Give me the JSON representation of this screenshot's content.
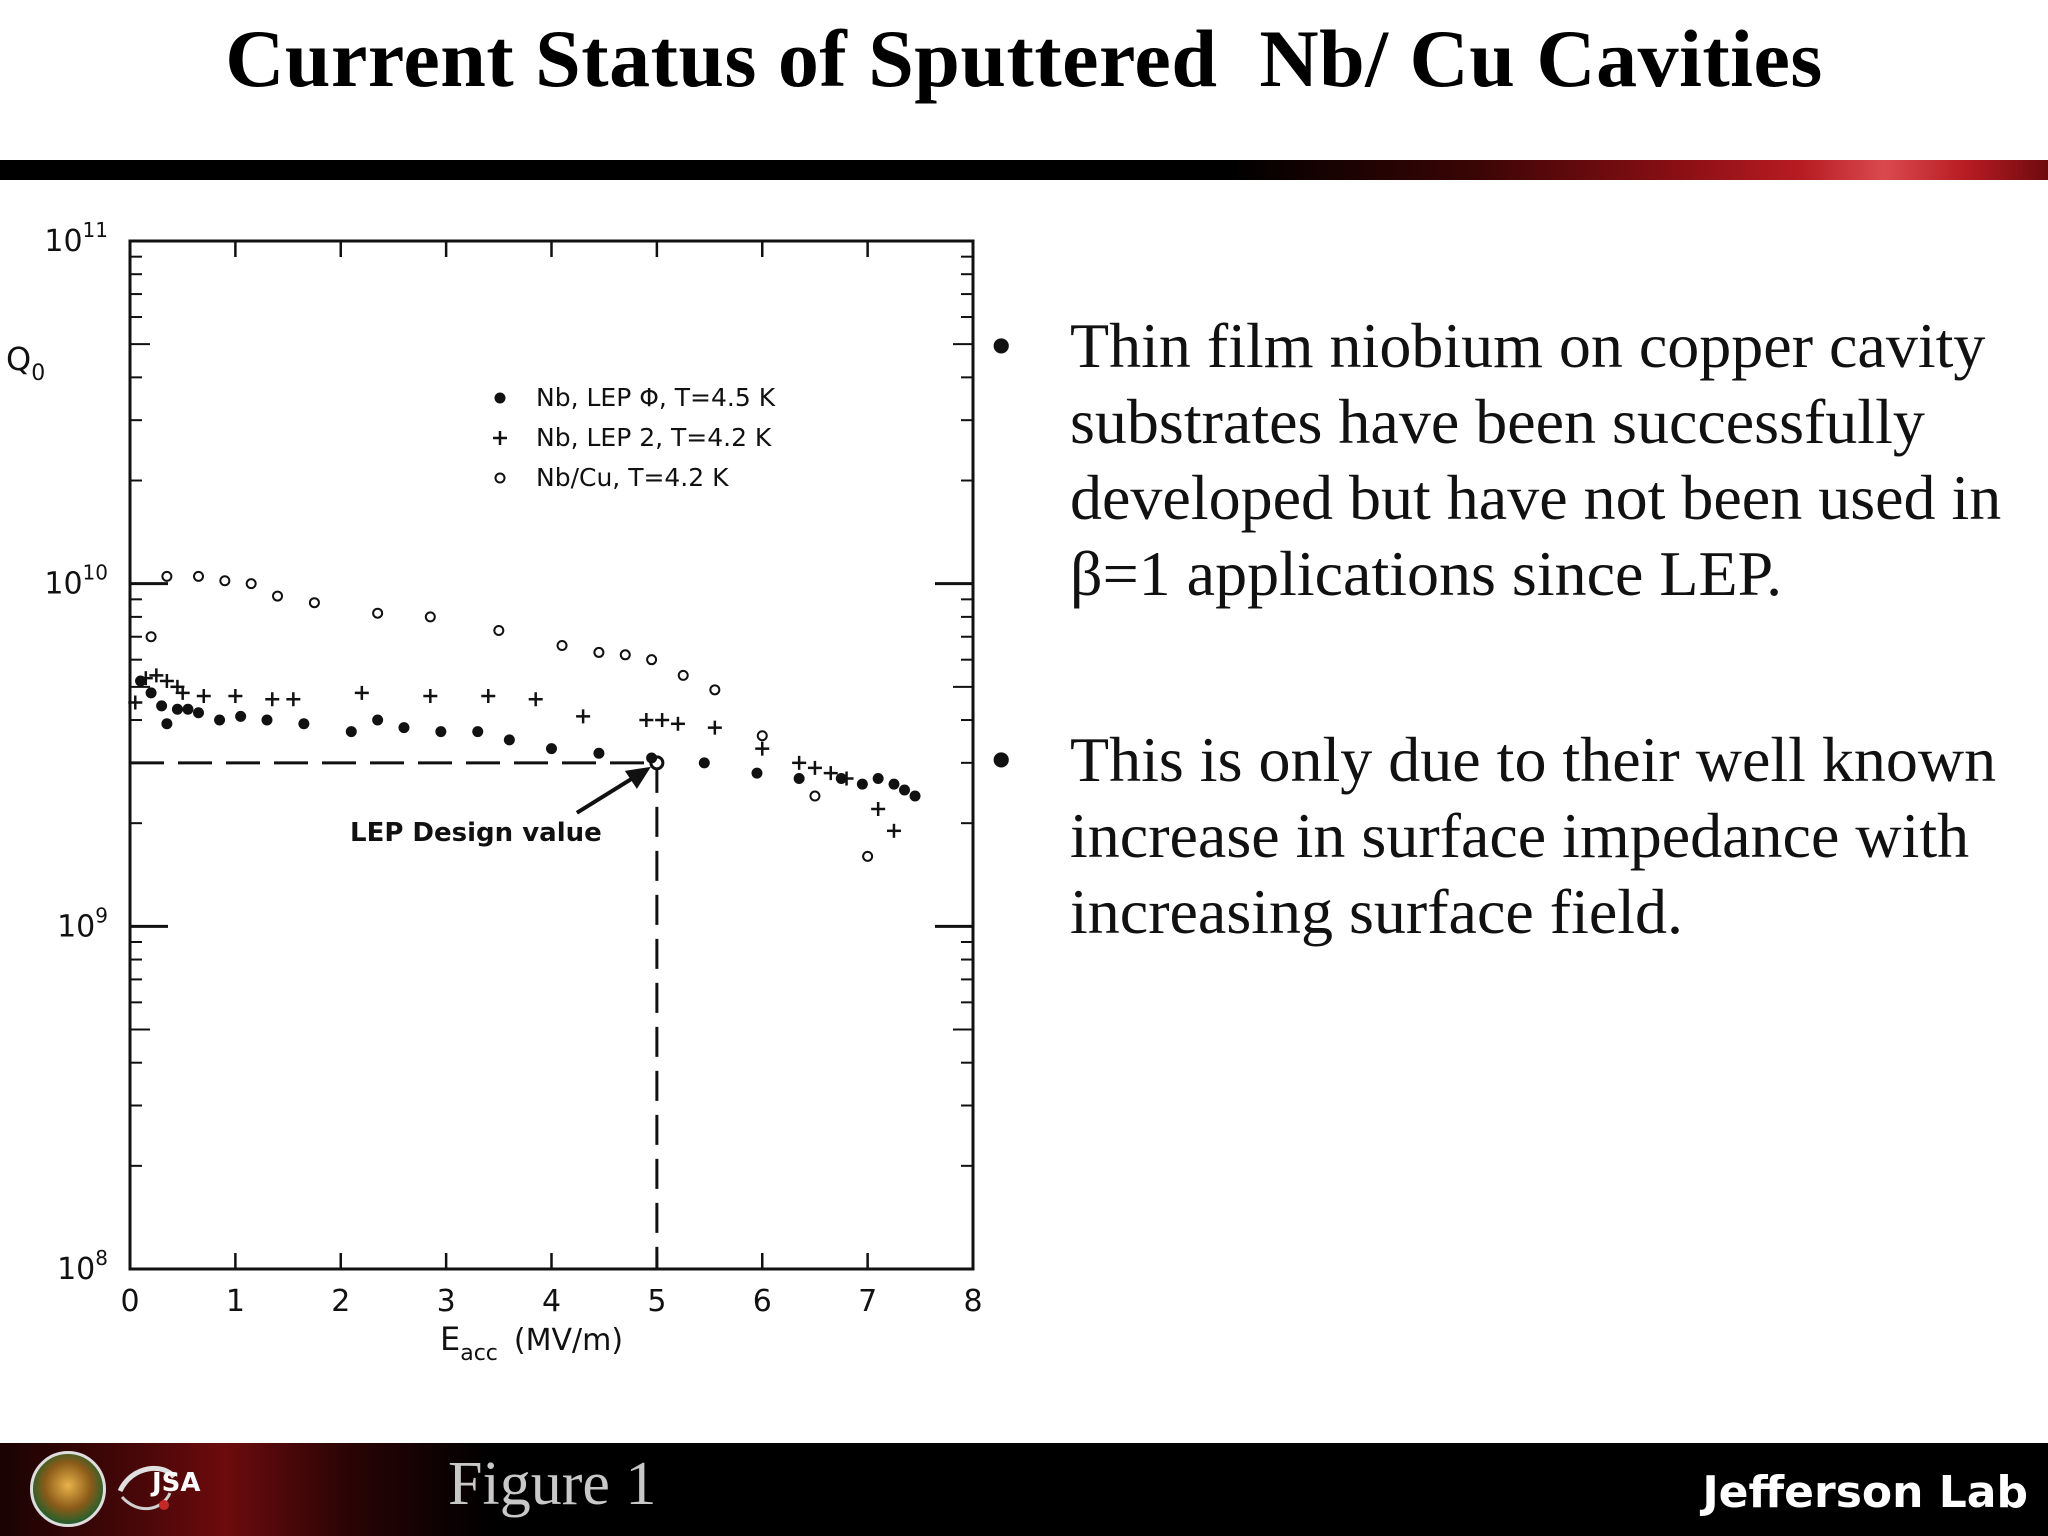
{
  "slide": {
    "title": "Current Status of Sputtered  Nb/ Cu Cavities",
    "bullets": [
      "Thin film niobium on copper cavity substrates have been successfully developed but have not been used in β=1 applications since LEP.",
      "This is only due to their well known increase in surface impedance with increasing surface field."
    ],
    "bullet_symbol": "•"
  },
  "footer": {
    "caption": "Figure 1",
    "brand": "Jefferson Lab",
    "logo_text": "JSA",
    "icons": [
      "doe-seal-icon",
      "jsa-logo-icon"
    ]
  },
  "chart_data": {
    "type": "scatter",
    "y_scale": "log",
    "xlim": [
      0,
      8
    ],
    "ylim": [
      100000000.0,
      100000000000.0
    ],
    "x_ticks": [
      "0",
      "1",
      "2",
      "3",
      "4",
      "5",
      "6",
      "7",
      "8"
    ],
    "y_ticks": [
      {
        "base": "10",
        "exp": "8"
      },
      {
        "base": "10",
        "exp": "9"
      },
      {
        "base": "10",
        "exp": "10"
      },
      {
        "base": "10",
        "exp": "11"
      }
    ],
    "ylabel": {
      "main": "Q",
      "sub": "0"
    },
    "xlabel": {
      "main": "E",
      "sub": "acc",
      "unit": "(MV/m)"
    },
    "grid": false,
    "legend_position": "top-center",
    "series": [
      {
        "name": "Nb, LEP Φ,  T=4.5 K",
        "marker": "dot",
        "x": [
          0.1,
          0.2,
          0.3,
          0.35,
          0.45,
          0.55,
          0.65,
          0.85,
          1.05,
          1.3,
          1.65,
          2.1,
          2.35,
          2.6,
          2.95,
          3.3,
          3.6,
          4.0,
          4.45,
          4.95,
          5.45,
          5.95,
          6.35,
          6.75,
          6.95,
          7.1,
          7.25,
          7.35,
          7.45
        ],
        "y": [
          5200000000.0,
          4800000000.0,
          4400000000.0,
          3900000000.0,
          4300000000.0,
          4300000000.0,
          4200000000.0,
          4000000000.0,
          4100000000.0,
          4000000000.0,
          3900000000.0,
          3700000000.0,
          4000000000.0,
          3800000000.0,
          3700000000.0,
          3700000000.0,
          3500000000.0,
          3300000000.0,
          3200000000.0,
          3100000000.0,
          3000000000.0,
          2800000000.0,
          2700000000.0,
          2700000000.0,
          2600000000.0,
          2700000000.0,
          2600000000.0,
          2500000000.0,
          2400000000.0
        ]
      },
      {
        "name": "Nb, LEP 2,  T=4.2 K",
        "marker": "plus",
        "x": [
          0.05,
          0.15,
          0.25,
          0.35,
          0.45,
          0.5,
          0.7,
          1.0,
          1.35,
          1.55,
          2.2,
          2.85,
          3.4,
          3.85,
          4.3,
          4.9,
          5.05,
          5.2,
          5.55,
          6.0,
          6.35,
          6.5,
          6.65,
          6.8,
          7.1,
          7.25
        ],
        "y": [
          4500000000.0,
          5300000000.0,
          5400000000.0,
          5200000000.0,
          5000000000.0,
          4800000000.0,
          4700000000.0,
          4700000000.0,
          4600000000.0,
          4600000000.0,
          4800000000.0,
          4700000000.0,
          4700000000.0,
          4600000000.0,
          4100000000.0,
          4000000000.0,
          4000000000.0,
          3900000000.0,
          3800000000.0,
          3300000000.0,
          3000000000.0,
          2900000000.0,
          2800000000.0,
          2700000000.0,
          2200000000.0,
          1900000000.0
        ]
      },
      {
        "name": "Nb/Cu,      T=4.2 K",
        "marker": "circle",
        "x": [
          0.2,
          0.35,
          0.65,
          0.9,
          1.15,
          1.4,
          1.75,
          2.35,
          2.85,
          3.5,
          4.1,
          4.45,
          4.7,
          4.95,
          5.25,
          5.55,
          6.0,
          6.5,
          7.0
        ],
        "y": [
          7000000000.0,
          10500000000.0,
          10500000000.0,
          10200000000.0,
          10000000000.0,
          9200000000.0,
          8800000000.0,
          8200000000.0,
          8000000000.0,
          7300000000.0,
          6600000000.0,
          6300000000.0,
          6200000000.0,
          6000000000.0,
          5400000000.0,
          4900000000.0,
          3600000000.0,
          2400000000.0,
          1600000000.0
        ]
      }
    ],
    "annotations": [
      {
        "text": "LEP Design value",
        "x": 5.0,
        "y": 3000000000.0,
        "style": "dashed reference lines with arrow"
      }
    ]
  }
}
